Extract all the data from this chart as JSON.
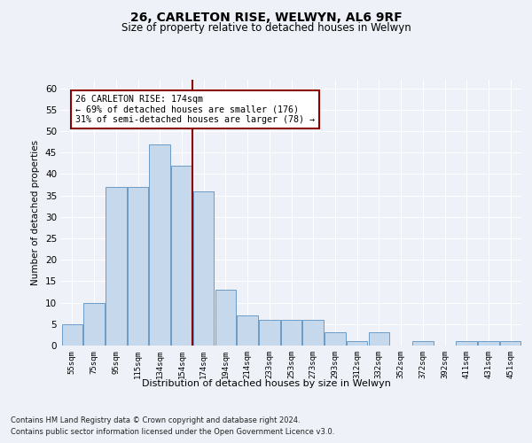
{
  "title1": "26, CARLETON RISE, WELWYN, AL6 9RF",
  "title2": "Size of property relative to detached houses in Welwyn",
  "xlabel": "Distribution of detached houses by size in Welwyn",
  "ylabel": "Number of detached properties",
  "bar_labels": [
    "55sqm",
    "75sqm",
    "95sqm",
    "115sqm",
    "134sqm",
    "154sqm",
    "174sqm",
    "194sqm",
    "214sqm",
    "233sqm",
    "253sqm",
    "273sqm",
    "293sqm",
    "312sqm",
    "332sqm",
    "352sqm",
    "372sqm",
    "392sqm",
    "411sqm",
    "431sqm",
    "451sqm"
  ],
  "bar_values": [
    5,
    10,
    37,
    37,
    47,
    42,
    36,
    13,
    7,
    6,
    6,
    6,
    3,
    1,
    3,
    0,
    1,
    0,
    1,
    1,
    1
  ],
  "bar_color": "#c6d9ec",
  "bar_edge_color": "#5a8fc0",
  "property_line_color": "#8b0000",
  "annotation_text": "26 CARLETON RISE: 174sqm\n← 69% of detached houses are smaller (176)\n31% of semi-detached houses are larger (78) →",
  "annotation_box_color": "white",
  "annotation_box_edge_color": "#8b0000",
  "ylim": [
    0,
    62
  ],
  "yticks": [
    0,
    5,
    10,
    15,
    20,
    25,
    30,
    35,
    40,
    45,
    50,
    55,
    60
  ],
  "footer1": "Contains HM Land Registry data © Crown copyright and database right 2024.",
  "footer2": "Contains public sector information licensed under the Open Government Licence v3.0.",
  "bg_color": "#eef2f8",
  "plot_bg_color": "#eef2f8",
  "grid_color": "#ffffff"
}
